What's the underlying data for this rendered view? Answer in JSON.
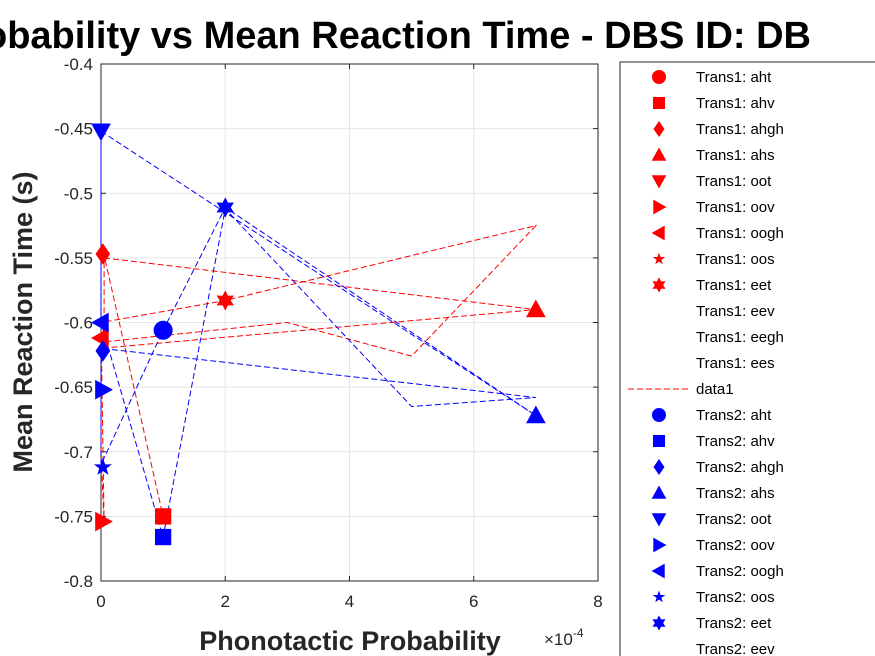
{
  "chart_data": {
    "type": "scatter",
    "title": "obability vs Mean Reaction Time - DBS ID: DB",
    "xlabel": "Phonotactic Probability",
    "ylabel": "Mean Reaction Time (s)",
    "x_multiplier": "×10",
    "x_multiplier_exp": "-4",
    "xlim": [
      0,
      8
    ],
    "ylim": [
      -0.8,
      -0.4
    ],
    "xticks": [
      "0",
      "2",
      "4",
      "6",
      "8"
    ],
    "yticks": [
      "-0.4",
      "-0.45",
      "-0.5",
      "-0.55",
      "-0.6",
      "-0.65",
      "-0.7",
      "-0.75",
      "-0.8"
    ],
    "grid": true,
    "legend_position": "outside-right",
    "colors": {
      "trans1": "#ff0000",
      "trans2": "#0000ff"
    },
    "series": [
      {
        "name": "Trans1: aht",
        "marker": "circle",
        "color": "#ff0000",
        "points": []
      },
      {
        "name": "Trans1: ahv",
        "marker": "square",
        "color": "#ff0000",
        "points": [
          [
            1.0,
            -0.75
          ]
        ]
      },
      {
        "name": "Trans1: ahgh",
        "marker": "diamond",
        "color": "#ff0000",
        "points": [
          [
            0.03,
            -0.547
          ]
        ]
      },
      {
        "name": "Trans1: ahs",
        "marker": "triangle-up",
        "color": "#ff0000",
        "points": [
          [
            7.0,
            -0.59
          ]
        ]
      },
      {
        "name": "Trans1: oot",
        "marker": "triangle-down",
        "color": "#ff0000",
        "points": []
      },
      {
        "name": "Trans1: oov",
        "marker": "triangle-right",
        "color": "#ff0000",
        "points": [
          [
            0.03,
            -0.754
          ]
        ]
      },
      {
        "name": "Trans1: oogh",
        "marker": "triangle-left",
        "color": "#ff0000",
        "points": [
          [
            0.0,
            -0.612
          ]
        ]
      },
      {
        "name": "Trans1: oos",
        "marker": "pentagram",
        "color": "#ff0000",
        "points": []
      },
      {
        "name": "Trans1: eet",
        "marker": "hexagram",
        "color": "#ff0000",
        "points": [
          [
            2.0,
            -0.583
          ]
        ]
      },
      {
        "name": "Trans1: eev",
        "marker": "none",
        "color": "#ff0000",
        "points": []
      },
      {
        "name": "Trans1: eegh",
        "marker": "none",
        "color": "#ff0000",
        "points": []
      },
      {
        "name": "Trans1: ees",
        "marker": "none",
        "color": "#ff0000",
        "points": []
      },
      {
        "name": "data1",
        "marker": "line",
        "color": "#ff0000",
        "points": [
          [
            0.05,
            -0.55
          ],
          [
            7.0,
            -0.59
          ],
          [
            0.0,
            -0.62
          ],
          [
            0.0,
            -0.7
          ],
          [
            0.05,
            -0.755
          ],
          [
            0.0,
            -0.6
          ],
          [
            2.0,
            -0.583
          ],
          [
            7.0,
            -0.525
          ],
          [
            5.0,
            -0.626
          ],
          [
            3.0,
            -0.6
          ],
          [
            0.05,
            -0.615
          ],
          [
            0.05,
            -0.548
          ],
          [
            1.0,
            -0.75
          ]
        ]
      },
      {
        "name": "Trans2: aht",
        "marker": "circle",
        "color": "#0000ff",
        "points": [
          [
            1.0,
            -0.606
          ]
        ]
      },
      {
        "name": "Trans2: ahv",
        "marker": "square",
        "color": "#0000ff",
        "points": [
          [
            1.0,
            -0.766
          ]
        ]
      },
      {
        "name": "Trans2: ahgh",
        "marker": "diamond",
        "color": "#0000ff",
        "points": [
          [
            0.03,
            -0.622
          ]
        ]
      },
      {
        "name": "Trans2: ahs",
        "marker": "triangle-up",
        "color": "#0000ff",
        "points": [
          [
            7.0,
            -0.672
          ]
        ]
      },
      {
        "name": "Trans2: oot",
        "marker": "triangle-down",
        "color": "#0000ff",
        "points": [
          [
            0.0,
            -0.452
          ]
        ]
      },
      {
        "name": "Trans2: oov",
        "marker": "triangle-right",
        "color": "#0000ff",
        "points": [
          [
            0.03,
            -0.652
          ]
        ]
      },
      {
        "name": "Trans2: oogh",
        "marker": "triangle-left",
        "color": "#0000ff",
        "points": [
          [
            0.0,
            -0.6
          ]
        ]
      },
      {
        "name": "Trans2: oos",
        "marker": "pentagram",
        "color": "#0000ff",
        "points": [
          [
            0.03,
            -0.712
          ]
        ]
      },
      {
        "name": "Trans2: eet",
        "marker": "hexagram",
        "color": "#0000ff",
        "points": [
          [
            2.0,
            -0.511
          ]
        ]
      },
      {
        "name": "Trans2: eev",
        "marker": "none",
        "color": "#0000ff",
        "points": []
      }
    ],
    "blue_line": [
      [
        0.0,
        -0.452
      ],
      [
        7.0,
        -0.672
      ],
      [
        2.0,
        -0.511
      ],
      [
        1.0,
        -0.606
      ],
      [
        0.0,
        -0.71
      ],
      [
        0.0,
        -0.45
      ],
      [
        0.0,
        -0.62
      ],
      [
        7.0,
        -0.658
      ],
      [
        5.0,
        -0.665
      ],
      [
        2.0,
        -0.512
      ],
      [
        1.0,
        -0.766
      ],
      [
        0.0,
        -0.6
      ],
      [
        0.0,
        -0.45
      ]
    ]
  }
}
